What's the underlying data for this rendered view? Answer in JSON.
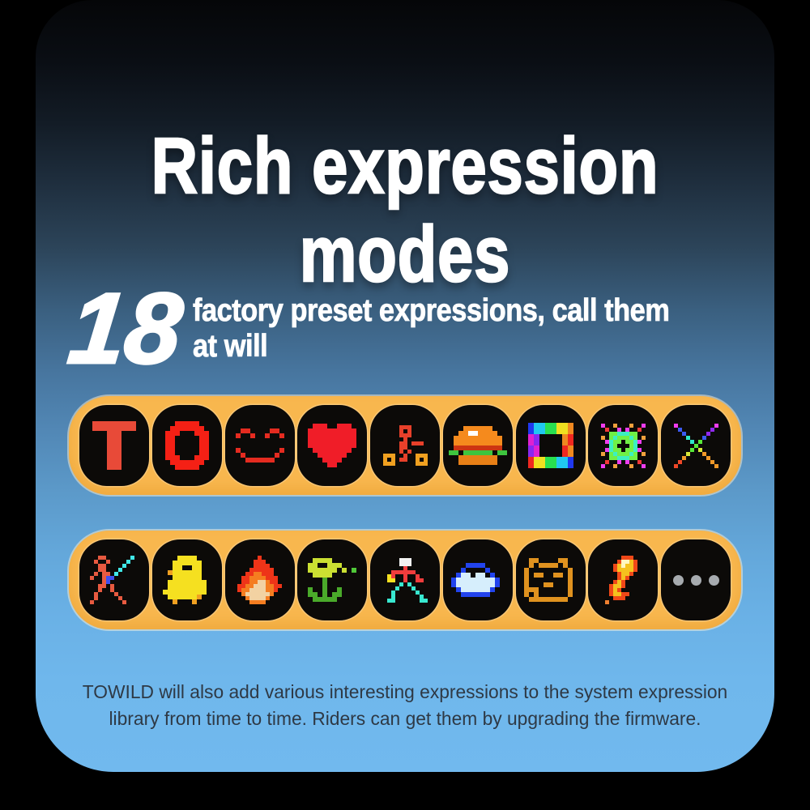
{
  "header": {
    "title_lines": [
      "Rich expression",
      "modes"
    ]
  },
  "stat": {
    "number": "18",
    "description_lines": [
      "factory preset expressions, call them",
      "at will"
    ]
  },
  "expression_bars": [
    {
      "name": "preset-expressions-bar-1",
      "icons": [
        "letter-t",
        "letter-o",
        "smiley-face",
        "heart",
        "cyclist",
        "hamburger",
        "rainbow-ring",
        "kaleidoscope",
        "sparkle-x"
      ]
    },
    {
      "name": "preset-expressions-bar-2",
      "icons": [
        "sword-fighter",
        "duck",
        "flame",
        "flower-shooter",
        "runner",
        "ufo",
        "cat-face",
        "comet",
        "more-ellipsis"
      ]
    }
  ],
  "footer": {
    "note_lines": [
      "TOWILD will also add various interesting expressions to the system expression",
      "library from time to time. Riders can get them by upgrading the firmware."
    ]
  },
  "colors": {
    "bar_background": "#F8B74E",
    "tile_background": "#0C0A08",
    "ellipsis_dots": "#A7ABAF",
    "gradient_top": "#05060B",
    "gradient_bottom": "#71B9EE",
    "title_text": "#FFFFFF",
    "footer_text": "#2E3945"
  }
}
